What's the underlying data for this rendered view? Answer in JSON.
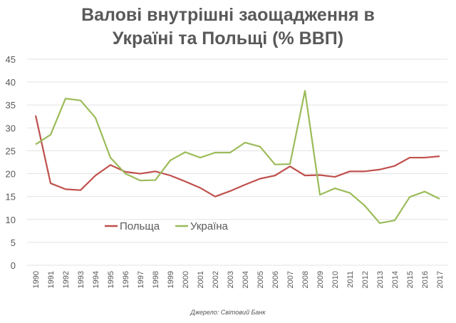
{
  "chart_data": {
    "type": "line",
    "title_line1": "Валові внутрішні заощадження в",
    "title_line2": "Україні та Польщі (% ВВП)",
    "source": "Джерело: Світовий Банк",
    "ylim": [
      0,
      45
    ],
    "yticks": [
      0,
      5,
      10,
      15,
      20,
      25,
      30,
      35,
      40,
      45
    ],
    "grid": true,
    "legend_placement": "center-left",
    "x": [
      1990,
      1991,
      1992,
      1993,
      1994,
      1995,
      1996,
      1997,
      1998,
      1999,
      2000,
      2001,
      2002,
      2003,
      2004,
      2005,
      2006,
      2007,
      2008,
      2009,
      2010,
      2011,
      2012,
      2013,
      2014,
      2015,
      2016,
      2017
    ],
    "series": [
      {
        "name": "Польща",
        "color": "#c0504d",
        "values": [
          32.7,
          17.9,
          16.6,
          16.4,
          19.6,
          21.9,
          20.4,
          20.0,
          20.5,
          19.6,
          18.3,
          16.9,
          15.0,
          16.2,
          17.6,
          18.9,
          19.6,
          21.6,
          19.6,
          19.7,
          19.3,
          20.5,
          20.5,
          20.9,
          21.7,
          23.5,
          23.5,
          23.8
        ]
      },
      {
        "name": "Україна",
        "color": "#9bbb59",
        "values": [
          26.4,
          28.5,
          36.4,
          36.0,
          32.2,
          23.5,
          20.0,
          18.5,
          18.6,
          22.9,
          24.7,
          23.5,
          24.6,
          24.6,
          26.8,
          25.9,
          22.0,
          22.1,
          38.1,
          15.4,
          16.8,
          15.8,
          13.0,
          9.2,
          9.8,
          14.9,
          16.1,
          14.5
        ]
      }
    ]
  }
}
